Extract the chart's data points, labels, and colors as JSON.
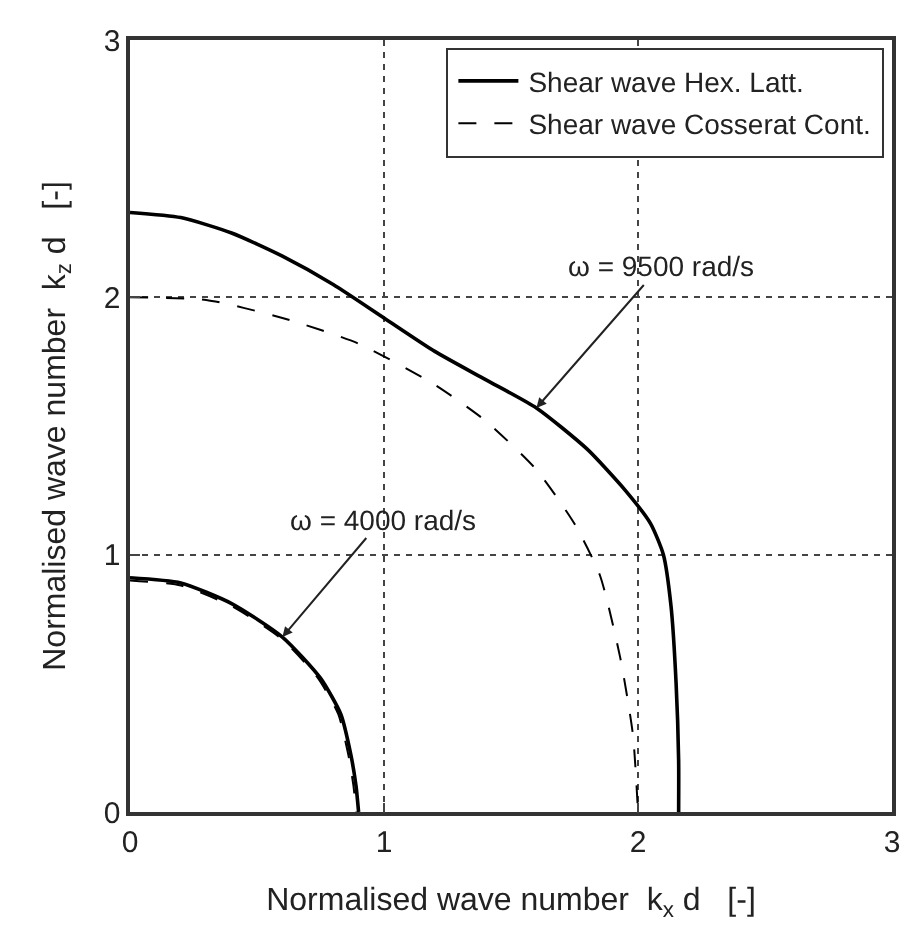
{
  "chart_data": {
    "type": "line",
    "xlabel": "Normalised wave number  k$_{x}$ d   [-]",
    "ylabel": "Normalised wave number  k$_{z}$ d   [-]",
    "xlim": [
      0,
      3
    ],
    "ylim": [
      0,
      3
    ],
    "xticks": [
      0,
      1,
      2,
      3
    ],
    "yticks": [
      0,
      1,
      2,
      3
    ],
    "grid": true,
    "legend": "top right",
    "marker": "none",
    "series": [
      {
        "name": "Shear wave Hex. Latt.",
        "color": "#000000",
        "line_style": "solid",
        "x": [
          0,
          0.2,
          0.4,
          0.6,
          0.8,
          1.0,
          1.2,
          1.4,
          1.6,
          1.8,
          1.95,
          2.05,
          2.1,
          2.13,
          2.15,
          2.16,
          2.16
        ],
        "values": [
          2.33,
          2.31,
          2.25,
          2.16,
          2.05,
          1.92,
          1.79,
          1.68,
          1.57,
          1.41,
          1.25,
          1.12,
          1.0,
          0.8,
          0.5,
          0.2,
          0
        ]
      },
      {
        "name": "Shear wave Cosserat Cont.",
        "color": "#000000",
        "line_style": "dashed",
        "x": [
          0,
          0.3,
          0.6,
          0.9,
          1.2,
          1.4,
          1.6,
          1.75,
          1.85,
          1.93,
          1.98,
          2.0
        ],
        "values": [
          2.0,
          1.99,
          1.92,
          1.82,
          1.66,
          1.52,
          1.33,
          1.12,
          0.92,
          0.6,
          0.3,
          0
        ]
      },
      {
        "color": "#000000",
        "line_style": "solid",
        "x": [
          0,
          0.2,
          0.4,
          0.6,
          0.75,
          0.83,
          0.87,
          0.89,
          0.9
        ],
        "values": [
          0.91,
          0.89,
          0.81,
          0.68,
          0.52,
          0.38,
          0.22,
          0.1,
          0
        ]
      },
      {
        "color": "#000000",
        "line_style": "dashed",
        "x": [
          0,
          0.2,
          0.4,
          0.6,
          0.74,
          0.82,
          0.86,
          0.88,
          0.89
        ],
        "values": [
          0.9,
          0.88,
          0.8,
          0.67,
          0.52,
          0.38,
          0.22,
          0.1,
          0
        ]
      }
    ],
    "annotations": [
      {
        "text": "ω = 9500 rad/s",
        "x": 1.6,
        "y": 1.57
      },
      {
        "text": "ω = 4000 rad/s",
        "x": 0.6,
        "y": 0.68
      }
    ]
  }
}
